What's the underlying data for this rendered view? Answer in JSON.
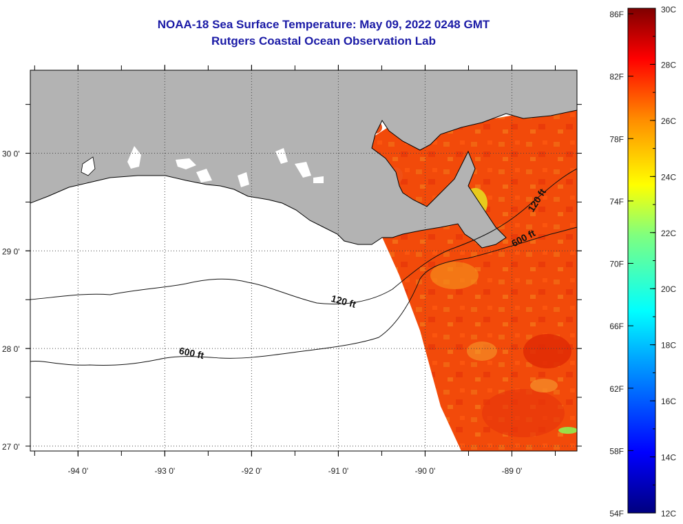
{
  "title": "NOAA-18 Sea Surface Temperature:  May 09, 2022 0248 GMT",
  "subtitle": "Rutgers Coastal Ocean Observation Lab",
  "map": {
    "lon_range": [
      -94.55,
      -88.25
    ],
    "lat_range": [
      26.95,
      30.85
    ],
    "lon_ticks": [
      {
        "value": -94,
        "label": "-94 0'"
      },
      {
        "value": -93,
        "label": "-93 0'"
      },
      {
        "value": -92,
        "label": "-92 0'"
      },
      {
        "value": -91,
        "label": "-91 0'"
      },
      {
        "value": -90,
        "label": "-90 0'"
      },
      {
        "value": -89,
        "label": "-89 0'"
      }
    ],
    "lat_ticks": [
      {
        "value": 30,
        "label": "30 0'"
      },
      {
        "value": 29,
        "label": "29 0'"
      },
      {
        "value": 28,
        "label": "28 0'"
      },
      {
        "value": 27,
        "label": "27 0'"
      }
    ],
    "contour_labels": [
      {
        "text": "120 ft",
        "lon": -90.95,
        "lat": 28.45,
        "angle": 15
      },
      {
        "text": "600 ft",
        "lon": -92.7,
        "lat": 27.92,
        "angle": 12
      },
      {
        "text": "120 ft",
        "lon": -88.68,
        "lat": 29.5,
        "angle": -58
      },
      {
        "text": "600 ft",
        "lon": -88.85,
        "lat": 29.1,
        "angle": -28
      }
    ],
    "colors": {
      "land": "#b3b3b3",
      "ocean_nodata": "#ffffff",
      "sst_main": "#f24a0a"
    }
  },
  "colorbar": {
    "f_labels": [
      "86F",
      "82F",
      "78F",
      "74F",
      "70F",
      "66F",
      "62F",
      "58F",
      "54F"
    ],
    "c_labels": [
      "30C",
      "28C",
      "26C",
      "24C",
      "22C",
      "20C",
      "18C",
      "16C",
      "14C",
      "12C"
    ],
    "range_c": [
      12,
      30
    ]
  }
}
